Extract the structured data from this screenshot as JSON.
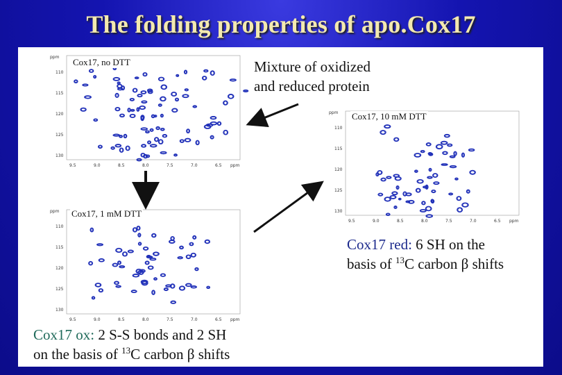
{
  "slide": {
    "title": "The folding  properties of apo.Cox17"
  },
  "spectra": {
    "no_dtt": {
      "label": "Cox17, no DTT"
    },
    "one_mm_dtt": {
      "label": "Cox17, 1 mM DTT"
    },
    "ten_mm_dtt": {
      "label": "Cox17, 10 mM DTT"
    },
    "y_axis_unit": "ppm",
    "x_axis_unit": "ppm",
    "y_ticks": [
      "110",
      "115",
      "120",
      "125",
      "130"
    ],
    "x_ticks": [
      "9.5",
      "9.0",
      "8.5",
      "8.0",
      "7.5",
      "7.0",
      "6.5"
    ],
    "peak_color": "#1f2fb8"
  },
  "notes": {
    "mixture_line1": "Mixture of oxidized",
    "mixture_line2": "and reduced protein"
  },
  "red_caption": {
    "lead": "Cox17 red:",
    "rest1": " 6 SH on the",
    "line2_pre": "basis of ",
    "sup": "13",
    "line2_post": "C carbon β shifts"
  },
  "ox_caption": {
    "lead": "Cox17 ox:",
    "rest1": " 2 S-S bonds and 2 SH",
    "line2_pre": "on the basis of ",
    "sup": "13",
    "line2_post": "C carbon β shifts"
  }
}
